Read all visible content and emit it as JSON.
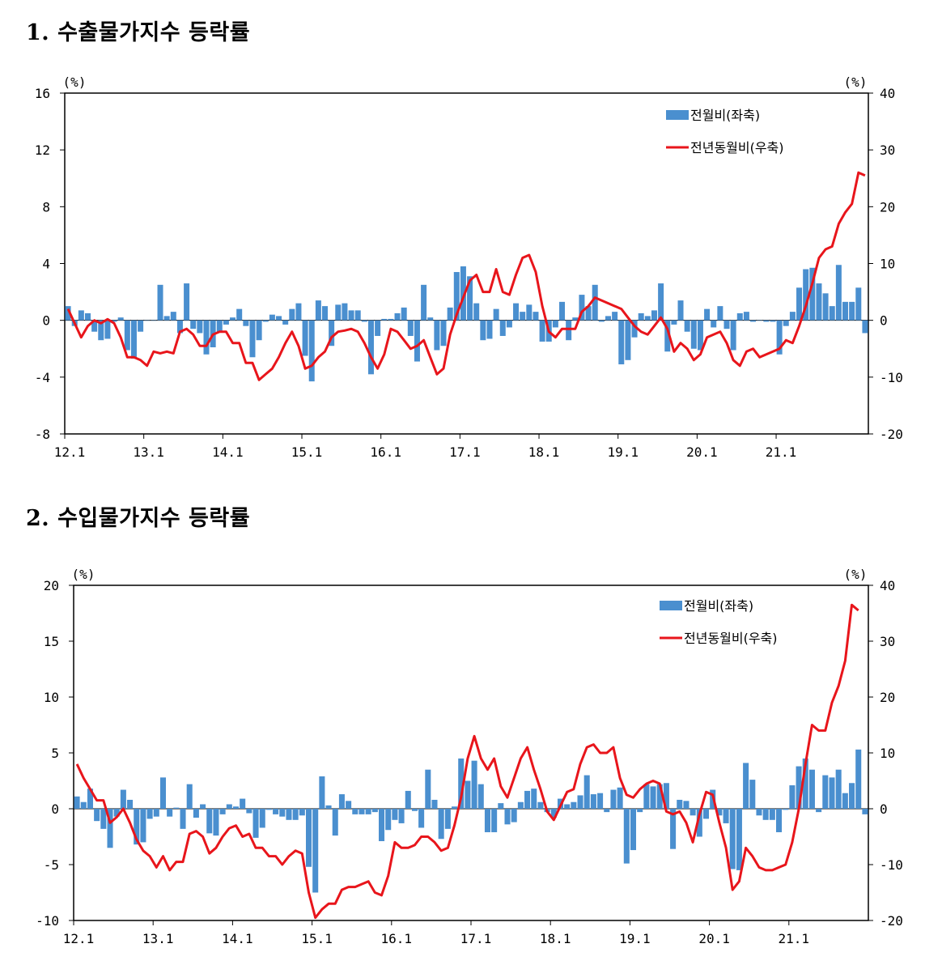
{
  "sections": [
    {
      "title": "1. 수출물가지수 등락률"
    },
    {
      "title": "2. 수입물가지수 등락률"
    }
  ],
  "chart_data": [
    {
      "type": "bar+line",
      "x_ticks": [
        "12.1",
        "13.1",
        "14.1",
        "15.1",
        "16.1",
        "17.1",
        "18.1",
        "19.1",
        "20.1",
        "21.1"
      ],
      "left_unit": "(%)",
      "right_unit": "(%)",
      "ylim_left": [
        -8,
        16
      ],
      "ylim_right": [
        -20,
        40
      ],
      "yticks_left": [
        "16",
        "12",
        "8",
        "4",
        "0",
        "-4",
        "-8"
      ],
      "yticks_right": [
        "40",
        "30",
        "20",
        "10",
        "0",
        "-10",
        "-20"
      ],
      "legend_position": "top-right",
      "colors": {
        "bar": "#4a8fcf",
        "line": "#e8151b"
      },
      "series": [
        {
          "name": "전월비(좌축)",
          "type": "bar",
          "axis": "left",
          "values": [
            1.0,
            -0.4,
            0.7,
            0.5,
            -0.8,
            -1.4,
            -1.3,
            -0.1,
            0.2,
            -2.1,
            -2.7,
            -0.8,
            0.0,
            0.0,
            2.5,
            0.3,
            0.6,
            -0.9,
            2.6,
            -0.6,
            -0.9,
            -2.4,
            -1.9,
            -0.8,
            -0.3,
            0.2,
            0.8,
            -0.4,
            -2.6,
            -1.4,
            -0.1,
            0.4,
            0.3,
            -0.3,
            0.8,
            1.2,
            -2.5,
            -4.3,
            1.4,
            1.0,
            -1.8,
            1.1,
            1.2,
            0.7,
            0.7,
            -0.1,
            -3.8,
            -1.1,
            0.1,
            0.1,
            0.5,
            0.9,
            -1.1,
            -2.9,
            2.5,
            0.2,
            -2.1,
            -1.8,
            0.9,
            3.4,
            3.8,
            3.1,
            1.2,
            -1.4,
            -1.3,
            0.8,
            -1.1,
            -0.5,
            1.2,
            0.6,
            1.1,
            0.6,
            -1.5,
            -1.5,
            -0.5,
            1.3,
            -1.4,
            0.2,
            1.8,
            1.0,
            2.5,
            -0.1,
            0.3,
            0.6,
            -3.1,
            -2.8,
            -1.2,
            0.5,
            0.3,
            0.7,
            2.6,
            -2.2,
            -0.3,
            1.4,
            -0.8,
            -2.0,
            -2.1,
            0.8,
            -0.5,
            1.0,
            -0.6,
            -2.1,
            0.5,
            0.6,
            -0.1,
            0.0,
            -0.1,
            -0.1,
            -2.4,
            -0.4,
            0.6,
            2.3,
            3.6,
            3.7,
            2.6,
            1.9,
            1.0,
            3.9,
            1.3,
            1.3,
            2.3,
            -0.9
          ]
        },
        {
          "name": "전년동월비(우축)",
          "type": "line",
          "axis": "right",
          "values": [
            2.0,
            -0.5,
            -3.0,
            -1.0,
            0.0,
            -0.5,
            0.2,
            -0.5,
            -3.0,
            -6.5,
            -6.5,
            -7.0,
            -8.0,
            -5.5,
            -5.8,
            -5.5,
            -5.8,
            -2.0,
            -1.5,
            -2.5,
            -4.5,
            -4.5,
            -2.5,
            -2.0,
            -2.0,
            -4.0,
            -4.0,
            -7.5,
            -7.5,
            -10.5,
            -9.5,
            -8.5,
            -6.5,
            -4.0,
            -2.0,
            -4.5,
            -8.5,
            -8.0,
            -6.5,
            -5.5,
            -3.0,
            -2.0,
            -1.8,
            -1.5,
            -2.0,
            -4.0,
            -6.5,
            -8.5,
            -6.0,
            -1.5,
            -2.0,
            -3.5,
            -5.0,
            -4.5,
            -3.5,
            -6.5,
            -9.5,
            -8.5,
            -2.5,
            1.0,
            4.0,
            7.0,
            8.0,
            5.0,
            5.0,
            9.0,
            5.0,
            4.5,
            8.0,
            11.0,
            11.5,
            8.5,
            2.5,
            -2.0,
            -3.0,
            -1.5,
            -1.5,
            -1.5,
            1.5,
            2.5,
            4.0,
            3.5,
            3.0,
            2.5,
            2.0,
            0.5,
            -1.0,
            -2.0,
            -2.5,
            -1.0,
            0.5,
            -1.5,
            -5.5,
            -4.0,
            -5.0,
            -7.0,
            -6.0,
            -3.0,
            -2.5,
            -2.0,
            -4.0,
            -7.0,
            -8.0,
            -5.5,
            -5.0,
            -6.5,
            -6.0,
            -5.5,
            -5.0,
            -3.5,
            -4.0,
            -1.0,
            2.5,
            6.5,
            11.0,
            12.5,
            13.0,
            17.0,
            19.0,
            20.5,
            26.0,
            25.5
          ]
        }
      ]
    },
    {
      "type": "bar+line",
      "x_ticks": [
        "12.1",
        "13.1",
        "14.1",
        "15.1",
        "16.1",
        "17.1",
        "18.1",
        "19.1",
        "20.1",
        "21.1"
      ],
      "left_unit": "(%)",
      "right_unit": "(%)",
      "ylim_left": [
        -10,
        20
      ],
      "ylim_right": [
        -20,
        40
      ],
      "yticks_left": [
        "20",
        "15",
        "10",
        "5",
        "0",
        "-5",
        "-10"
      ],
      "yticks_right": [
        "40",
        "30",
        "20",
        "10",
        "0",
        "-10",
        "-20"
      ],
      "legend_position": "top-right",
      "colors": {
        "bar": "#4a8fcf",
        "line": "#e8151b"
      },
      "series": [
        {
          "name": "전월비(좌축)",
          "type": "bar",
          "axis": "left",
          "values": [
            1.1,
            0.6,
            1.8,
            -1.1,
            -1.8,
            -3.5,
            -0.7,
            1.7,
            0.8,
            -3.2,
            -3.0,
            -0.9,
            -0.7,
            2.8,
            -0.7,
            0.1,
            -1.8,
            2.2,
            -0.8,
            0.4,
            -2.2,
            -2.4,
            -0.5,
            0.4,
            0.2,
            0.9,
            -0.4,
            -2.6,
            -1.7,
            -0.1,
            -0.5,
            -0.7,
            -1.0,
            -1.0,
            -0.6,
            -5.2,
            -7.5,
            2.9,
            0.3,
            -2.4,
            1.3,
            0.7,
            -0.5,
            -0.5,
            -0.5,
            -0.3,
            -2.9,
            -1.9,
            -1.0,
            -1.3,
            1.6,
            -0.2,
            -1.7,
            3.5,
            0.8,
            -2.7,
            -1.8,
            0.2,
            4.5,
            2.5,
            4.3,
            2.2,
            -2.1,
            -2.1,
            0.5,
            -1.4,
            -1.2,
            0.6,
            1.6,
            1.8,
            0.6,
            -0.3,
            -0.8,
            0.9,
            0.4,
            0.6,
            1.2,
            3.0,
            1.3,
            1.4,
            -0.3,
            1.7,
            1.9,
            -4.9,
            -3.7,
            -0.3,
            2.2,
            2.0,
            2.2,
            2.3,
            -3.6,
            0.8,
            0.7,
            -0.6,
            -2.5,
            -0.9,
            1.7,
            -0.6,
            -1.3,
            -5.4,
            -5.5,
            4.1,
            2.6,
            -0.6,
            -1.0,
            -1.0,
            -2.1,
            -0.1,
            2.1,
            3.8,
            4.5,
            3.5,
            -0.3,
            3.0,
            2.8,
            3.5,
            1.4,
            2.3,
            5.3,
            -0.5
          ]
        },
        {
          "name": "전년동월비(우축)",
          "type": "line",
          "axis": "right",
          "values": [
            8.0,
            5.5,
            3.5,
            1.5,
            1.5,
            -2.5,
            -1.5,
            0.0,
            -2.5,
            -5.5,
            -7.5,
            -8.5,
            -10.5,
            -8.5,
            -11.0,
            -9.5,
            -9.5,
            -4.5,
            -4.0,
            -5.0,
            -8.0,
            -7.0,
            -5.0,
            -3.5,
            -3.0,
            -5.0,
            -4.5,
            -7.0,
            -7.0,
            -8.5,
            -8.5,
            -10.0,
            -8.5,
            -7.5,
            -8.0,
            -15.0,
            -19.5,
            -18.0,
            -17.0,
            -17.0,
            -14.5,
            -14.0,
            -14.0,
            -13.5,
            -13.0,
            -15.0,
            -15.5,
            -12.0,
            -6.0,
            -7.0,
            -7.0,
            -6.5,
            -5.0,
            -5.0,
            -6.0,
            -7.5,
            -7.0,
            -3.0,
            2.0,
            9.0,
            13.0,
            9.0,
            7.0,
            9.0,
            4.0,
            2.0,
            5.5,
            9.0,
            11.0,
            7.0,
            3.5,
            -0.5,
            -2.0,
            0.5,
            3.0,
            3.5,
            8.0,
            11.0,
            11.5,
            10.0,
            10.0,
            11.0,
            5.5,
            2.5,
            2.0,
            3.5,
            4.5,
            5.0,
            4.5,
            -0.5,
            -1.0,
            -0.5,
            -2.5,
            -6.0,
            -1.0,
            3.0,
            2.5,
            -2.5,
            -7.0,
            -14.5,
            -13.0,
            -7.0,
            -8.5,
            -10.5,
            -11.0,
            -11.0,
            -10.5,
            -10.0,
            -6.0,
            0.0,
            8.0,
            15.0,
            14.0,
            14.0,
            19.0,
            22.0,
            26.5,
            36.5,
            35.5
          ]
        }
      ]
    }
  ]
}
